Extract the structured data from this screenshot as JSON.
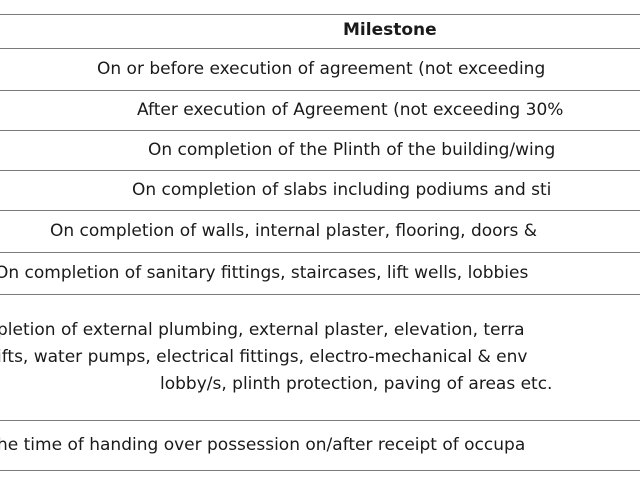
{
  "table": {
    "header": "Milestone",
    "rows": [
      [
        "On or before execution of agreement (not exceeding"
      ],
      [
        "After execution of Agreement (not exceeding 30%"
      ],
      [
        "On completion of the Plinth of the building/wing"
      ],
      [
        "On completion of slabs including podiums and sti"
      ],
      [
        "On completion of walls, internal plaster, flooring, doors &"
      ],
      [
        "On completion of sanitary fittings, staircases, lift wells, lobbies"
      ],
      [
        "pletion of external plumbing, external plaster, elevation, terra",
        "ifts, water pumps, electrical fittings, electro-mechanical & env",
        "lobby/s, plinth protection, paving of areas etc."
      ],
      [
        "he time of handing over possession on/after receipt of occupa"
      ]
    ]
  }
}
